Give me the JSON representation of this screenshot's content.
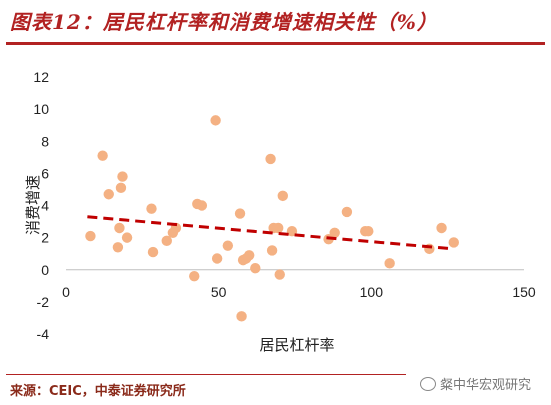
{
  "header": {
    "title": "图表12：居民杠杆率和消费增速相关性（%）"
  },
  "footer": {
    "source": "来源：CEIC，中泰证券研究所",
    "watermark": "粲中华宏观研究"
  },
  "colors": {
    "title": "#b22222",
    "points": "#f4b183",
    "trendline": "#c00000"
  },
  "chart_data": {
    "type": "scatter",
    "title": "",
    "xlabel": "居民杠杆率",
    "ylabel": "消费增速",
    "xlim": [
      0,
      150
    ],
    "ylim": [
      -4,
      12
    ],
    "x_ticks": [
      "0",
      "50",
      "100",
      "150"
    ],
    "y_ticks": [
      "-4",
      "-2",
      "0",
      "2",
      "4",
      "6",
      "8",
      "10",
      "12"
    ],
    "grid": false,
    "legend": "none",
    "points": [
      {
        "x": 8,
        "y": 2.1
      },
      {
        "x": 12,
        "y": 7.1
      },
      {
        "x": 14,
        "y": 4.7
      },
      {
        "x": 17,
        "y": 1.4
      },
      {
        "x": 17.5,
        "y": 2.6
      },
      {
        "x": 18,
        "y": 5.1
      },
      {
        "x": 18.5,
        "y": 5.8
      },
      {
        "x": 20,
        "y": 2.0
      },
      {
        "x": 28,
        "y": 3.8
      },
      {
        "x": 28.5,
        "y": 1.1
      },
      {
        "x": 33,
        "y": 1.8
      },
      {
        "x": 35,
        "y": 2.3
      },
      {
        "x": 36,
        "y": 2.6
      },
      {
        "x": 42,
        "y": -0.4
      },
      {
        "x": 43,
        "y": 4.1
      },
      {
        "x": 44.5,
        "y": 4.0
      },
      {
        "x": 49,
        "y": 9.3
      },
      {
        "x": 49.5,
        "y": 0.7
      },
      {
        "x": 53,
        "y": 1.5
      },
      {
        "x": 57,
        "y": 3.5
      },
      {
        "x": 57.5,
        "y": -2.9
      },
      {
        "x": 58,
        "y": 0.6
      },
      {
        "x": 59,
        "y": 0.7
      },
      {
        "x": 60,
        "y": 0.9
      },
      {
        "x": 62,
        "y": 0.1
      },
      {
        "x": 67,
        "y": 6.9
      },
      {
        "x": 67.5,
        "y": 1.2
      },
      {
        "x": 68,
        "y": 2.6
      },
      {
        "x": 69.5,
        "y": 2.6
      },
      {
        "x": 70,
        "y": -0.3
      },
      {
        "x": 71,
        "y": 4.6
      },
      {
        "x": 74,
        "y": 2.4
      },
      {
        "x": 86,
        "y": 1.9
      },
      {
        "x": 88,
        "y": 2.3
      },
      {
        "x": 92,
        "y": 3.6
      },
      {
        "x": 98,
        "y": 2.4
      },
      {
        "x": 99,
        "y": 2.4
      },
      {
        "x": 106,
        "y": 0.4
      },
      {
        "x": 119,
        "y": 1.3
      },
      {
        "x": 123,
        "y": 2.6
      },
      {
        "x": 127,
        "y": 1.7
      }
    ],
    "trendline": {
      "x0": 7,
      "y0": 3.3,
      "x1": 127,
      "y1": 1.3,
      "style": "dashed"
    }
  }
}
